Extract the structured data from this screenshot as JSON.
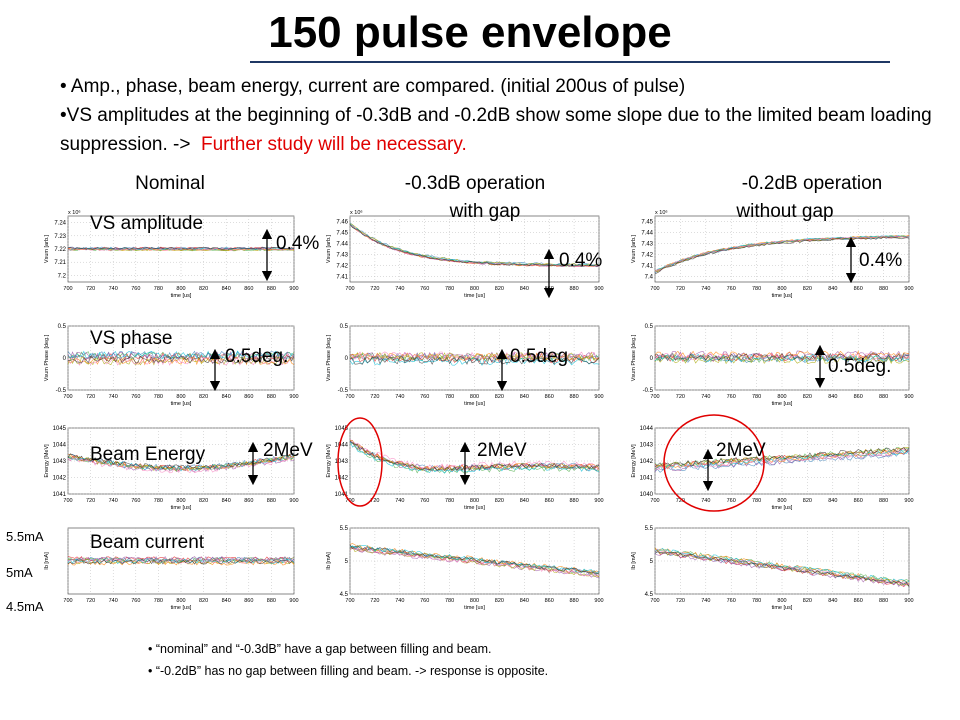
{
  "title": "150 pulse envelope",
  "bullets": [
    "Amp., phase, beam energy, current are compared. (initial 200us of pulse)",
    {
      "text": "VS amplitudes at the beginning of -0.3dB and -0.2dB show some slope due to the limited beam loading suppression. ->",
      "highlight": "Further study will be necessary."
    }
  ],
  "column_headers": [
    {
      "line1": "Nominal"
    },
    {
      "line1": "-0.3dB operation",
      "line2": "with gap"
    },
    {
      "line1": "-0.2dB operation",
      "line2": "without gap"
    }
  ],
  "row_labels": [
    "VS amplitude",
    "VS phase",
    "Beam Energy",
    "Beam current"
  ],
  "annotations": [
    "0.4%",
    "0.4%",
    "0.4%",
    "0.5deg.",
    "0.5deg",
    "0.5deg.",
    "2MeV",
    "2MeV",
    "2MeV"
  ],
  "current_labels": [
    "5.5mA",
    "5mA",
    "4.5mA"
  ],
  "plots": {
    "x_label": "time [us]",
    "xlim": [
      700,
      900
    ],
    "xticks": [
      700,
      720,
      740,
      760,
      780,
      800,
      820,
      840,
      860,
      880,
      900
    ],
    "rows": [
      {
        "y_label": "Vsum [arb.]",
        "exponent": "x 10⁶",
        "panels": [
          {
            "ylim": [
              7.195,
              7.245
            ],
            "yticks": [
              7.24,
              7.23,
              7.22,
              7.21,
              7.2
            ]
          },
          {
            "ylim": [
              7.405,
              7.465
            ],
            "yticks": [
              7.46,
              7.45,
              7.44,
              7.43,
              7.42,
              7.41
            ]
          },
          {
            "ylim": [
              7.395,
              7.455
            ],
            "yticks": [
              7.45,
              7.44,
              7.43,
              7.42,
              7.41,
              7.4
            ]
          }
        ]
      },
      {
        "y_label": "Vsum Phase [deg.]",
        "panels": [
          {
            "ylim": [
              -0.5,
              0.5
            ],
            "yticks": [
              0.5,
              0,
              -0.5
            ]
          },
          {
            "ylim": [
              -0.5,
              0.5
            ],
            "yticks": [
              0.5,
              0,
              -0.5
            ]
          },
          {
            "ylim": [
              -0.5,
              0.5
            ],
            "yticks": [
              0.5,
              0,
              -0.5
            ]
          }
        ]
      },
      {
        "y_label": "Energy [MeV]",
        "panels": [
          {
            "ylim": [
              1041,
              1045
            ],
            "yticks": [
              1045,
              1044,
              1043,
              1042,
              1041
            ]
          },
          {
            "ylim": [
              1041,
              1045
            ],
            "yticks": [
              1045,
              1044,
              1043,
              1042,
              1041
            ]
          },
          {
            "ylim": [
              1040,
              1044
            ],
            "yticks": [
              1044,
              1043,
              1042,
              1041,
              1040
            ]
          }
        ]
      },
      {
        "y_label": "Ib [mA]",
        "panels": [
          {
            "ylim": [
              4.5,
              5.5
            ],
            "yticks": []
          },
          {
            "ylim": [
              4.5,
              5.5
            ],
            "yticks": [
              5.5,
              5,
              4.5
            ]
          },
          {
            "ylim": [
              4.5,
              5.5
            ],
            "yticks": [
              5.5,
              5,
              4.5
            ]
          }
        ]
      }
    ]
  },
  "footnotes": [
    "“nominal” and “-0.3dB” have a gap between filling and beam.",
    "“-0.2dB” has no gap between filling and beam. -> response is opposite."
  ]
}
